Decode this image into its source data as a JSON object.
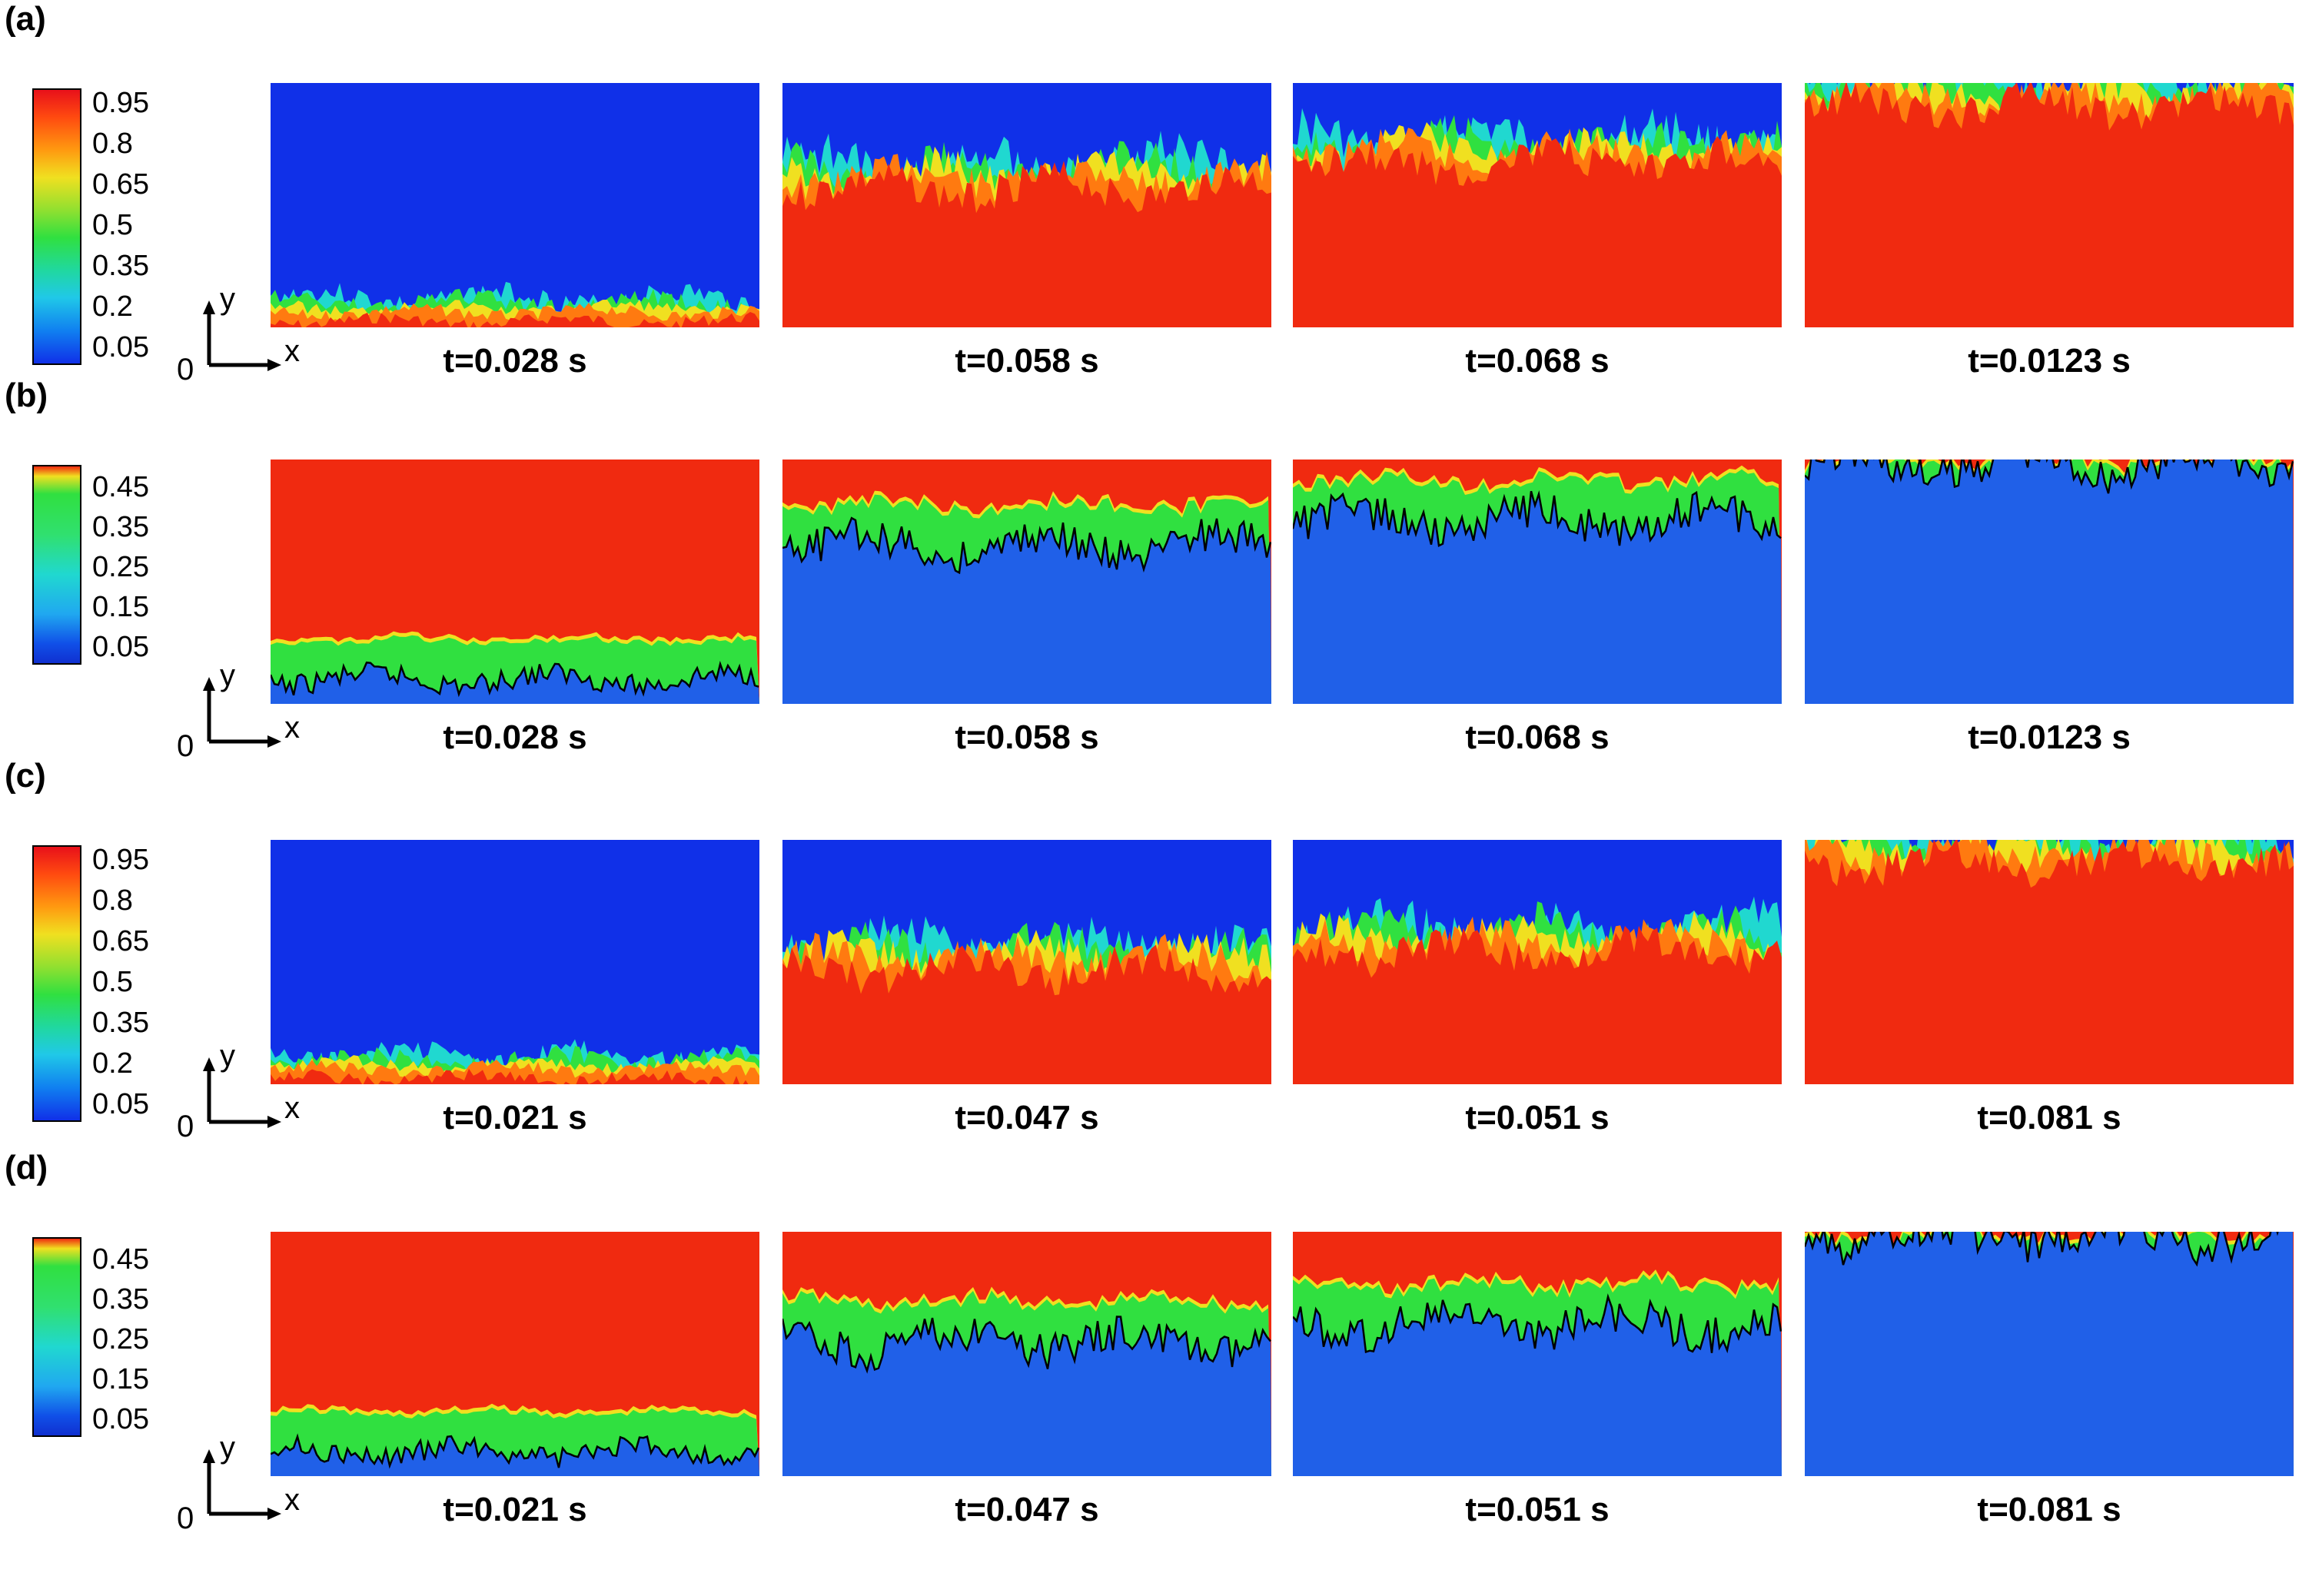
{
  "rows": [
    {
      "label": "(a)",
      "colorbar_ticks": [
        "0.95",
        "0.8",
        "0.65",
        "0.5",
        "0.35",
        "0.2",
        "0.05"
      ],
      "scale": "full",
      "axes": {
        "y": "y",
        "x": "x",
        "origin": "0"
      },
      "panels": [
        {
          "time": "t=0.028 s",
          "front": 0.9
        },
        {
          "time": "t=0.058 s",
          "front": 0.35
        },
        {
          "time": "t=0.068 s",
          "front": 0.25
        },
        {
          "time": "t=0.0123 s",
          "front": 0.02
        }
      ]
    },
    {
      "label": "(b)",
      "colorbar_ticks": [
        "0.45",
        "0.35",
        "0.25",
        "0.15",
        "0.05"
      ],
      "scale": "half",
      "axes": {
        "y": "y",
        "x": "x",
        "origin": "0"
      },
      "panels": [
        {
          "time": "t=0.028 s",
          "front": 0.9
        },
        {
          "time": "t=0.058 s",
          "front": 0.35
        },
        {
          "time": "t=0.068 s",
          "front": 0.25
        },
        {
          "time": "t=0.0123 s",
          "front": 0.02
        }
      ]
    },
    {
      "label": "(c)",
      "colorbar_ticks": [
        "0.95",
        "0.8",
        "0.65",
        "0.5",
        "0.35",
        "0.2",
        "0.05"
      ],
      "scale": "full",
      "axes": {
        "y": "y",
        "x": "x",
        "origin": "0"
      },
      "panels": [
        {
          "time": "t=0.021 s",
          "front": 0.9
        },
        {
          "time": "t=0.047 s",
          "front": 0.45
        },
        {
          "time": "t=0.051 s",
          "front": 0.38
        },
        {
          "time": "t=0.081 s",
          "front": 0.02
        }
      ]
    },
    {
      "label": "(d)",
      "colorbar_ticks": [
        "0.45",
        "0.35",
        "0.25",
        "0.15",
        "0.05"
      ],
      "scale": "half",
      "axes": {
        "y": "y",
        "x": "x",
        "origin": "0"
      },
      "panels": [
        {
          "time": "t=0.021 s",
          "front": 0.9
        },
        {
          "time": "t=0.047 s",
          "front": 0.45
        },
        {
          "time": "t=0.051 s",
          "front": 0.38
        },
        {
          "time": "t=0.081 s",
          "front": 0.02
        }
      ]
    }
  ],
  "colors": {
    "blue": "#1030e8",
    "red": "#f02a10",
    "green": "#30e040",
    "yellow": "#f0e020",
    "orange": "#ff7a10",
    "cyan": "#20d8d0"
  }
}
